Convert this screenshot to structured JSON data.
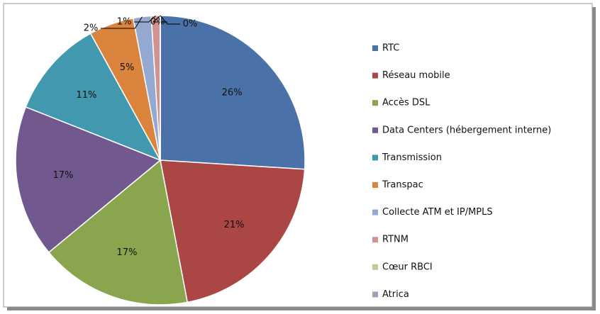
{
  "chart_data": {
    "type": "pie",
    "categories": [
      "RTC",
      "Réseau mobile",
      "Accès DSL",
      "Data Centers (hébergement interne)",
      "Transmission",
      "Transpac",
      "Collecte ATM et IP/MPLS",
      "RTNM",
      "Cœur RBCI",
      "Atrica"
    ],
    "values": [
      26,
      21,
      17,
      17,
      11,
      5,
      2,
      1,
      0,
      0
    ],
    "value_labels": [
      "26%",
      "21%",
      "17%",
      "17%",
      "11%",
      "5%",
      "2%",
      "1%",
      "0%",
      "0%"
    ],
    "colors": [
      "#4a72a8",
      "#aa4644",
      "#89a54e",
      "#71588f",
      "#4298af",
      "#db843d",
      "#93a9cf",
      "#d19392",
      "#b9cd96",
      "#a99bbd"
    ],
    "legend": "right"
  }
}
